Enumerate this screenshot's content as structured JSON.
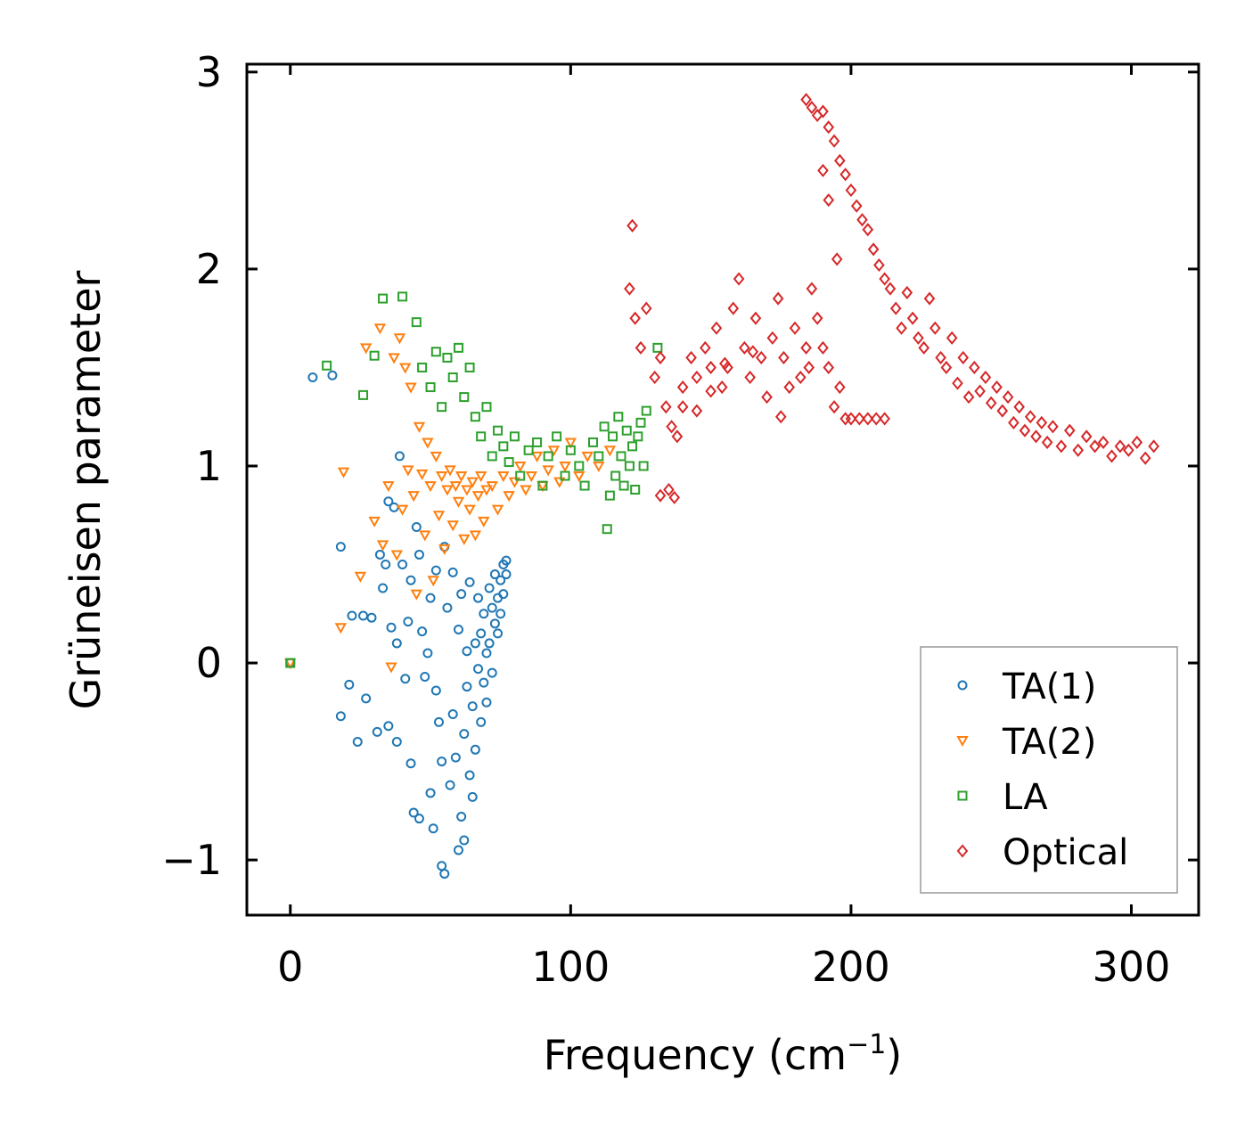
{
  "chart_data": {
    "type": "scatter",
    "xlabel": "Frequency (cm",
    "xlabel_superscript": "−1",
    "xlabel_suffix": ")",
    "ylabel": "Grüneisen parameter",
    "xlim": [
      -15.5,
      324
    ],
    "ylim": [
      -1.28,
      3.04
    ],
    "xticks": [
      0,
      100,
      200,
      300
    ],
    "xtick_labels": [
      "0",
      "100",
      "200",
      "300"
    ],
    "yticks": [
      -1,
      0,
      1,
      2,
      3
    ],
    "ytick_labels": [
      "−1",
      "0",
      "1",
      "2",
      "3"
    ],
    "legend_position": "lower-right",
    "series": [
      {
        "name": "TA(1)",
        "marker": "circle",
        "color": "#1f77b4",
        "points": [
          [
            0,
            0
          ],
          [
            8,
            1.45
          ],
          [
            15,
            1.46
          ],
          [
            18,
            0.59
          ],
          [
            18,
            -0.27
          ],
          [
            21,
            -0.11
          ],
          [
            22,
            0.24
          ],
          [
            24,
            -0.4
          ],
          [
            26,
            0.24
          ],
          [
            27,
            -0.18
          ],
          [
            29,
            0.23
          ],
          [
            31,
            -0.35
          ],
          [
            32,
            0.55
          ],
          [
            33,
            0.38
          ],
          [
            34,
            0.5
          ],
          [
            35,
            -0.32
          ],
          [
            35,
            0.82
          ],
          [
            36,
            0.18
          ],
          [
            37,
            0.79
          ],
          [
            38,
            0.1
          ],
          [
            38,
            -0.4
          ],
          [
            39,
            1.05
          ],
          [
            40,
            0.5
          ],
          [
            41,
            -0.08
          ],
          [
            42,
            0.21
          ],
          [
            43,
            0.42
          ],
          [
            43,
            -0.51
          ],
          [
            44,
            -0.76
          ],
          [
            45,
            0.69
          ],
          [
            46,
            0.55
          ],
          [
            46,
            -0.79
          ],
          [
            47,
            0.16
          ],
          [
            48,
            -0.07
          ],
          [
            49,
            0.05
          ],
          [
            50,
            -0.66
          ],
          [
            50,
            0.33
          ],
          [
            51,
            -0.84
          ],
          [
            52,
            -0.14
          ],
          [
            52,
            0.47
          ],
          [
            53,
            -0.3
          ],
          [
            54,
            -0.5
          ],
          [
            54,
            -1.03
          ],
          [
            55,
            -1.07
          ],
          [
            55,
            0.59
          ],
          [
            56,
            0.28
          ],
          [
            57,
            -0.62
          ],
          [
            58,
            -0.26
          ],
          [
            58,
            0.46
          ],
          [
            59,
            -0.48
          ],
          [
            60,
            -0.95
          ],
          [
            60,
            0.17
          ],
          [
            61,
            -0.78
          ],
          [
            61,
            0.35
          ],
          [
            62,
            -0.36
          ],
          [
            62,
            -0.9
          ],
          [
            63,
            0.06
          ],
          [
            63,
            -0.12
          ],
          [
            64,
            -0.57
          ],
          [
            64,
            0.41
          ],
          [
            65,
            -0.22
          ],
          [
            65,
            -0.68
          ],
          [
            66,
            0.1
          ],
          [
            66,
            -0.44
          ],
          [
            67,
            -0.03
          ],
          [
            67,
            0.33
          ],
          [
            68,
            -0.3
          ],
          [
            68,
            0.15
          ],
          [
            69,
            -0.1
          ],
          [
            69,
            0.25
          ],
          [
            70,
            0.05
          ],
          [
            70,
            -0.2
          ],
          [
            71,
            0.38
          ],
          [
            71,
            0.1
          ],
          [
            72,
            0.28
          ],
          [
            72,
            -0.05
          ],
          [
            73,
            0.45
          ],
          [
            73,
            0.2
          ],
          [
            74,
            0.33
          ],
          [
            74,
            0.15
          ],
          [
            75,
            0.42
          ],
          [
            75,
            0.25
          ],
          [
            76,
            0.5
          ],
          [
            76,
            0.35
          ],
          [
            77,
            0.52
          ],
          [
            77,
            0.45
          ]
        ]
      },
      {
        "name": "TA(2)",
        "marker": "triangle-down",
        "color": "#ff7f0e",
        "points": [
          [
            0,
            0
          ],
          [
            18,
            0.18
          ],
          [
            19,
            0.97
          ],
          [
            25,
            0.44
          ],
          [
            27,
            1.6
          ],
          [
            30,
            0.72
          ],
          [
            32,
            1.7
          ],
          [
            33,
            0.6
          ],
          [
            35,
            0.9
          ],
          [
            36,
            -0.02
          ],
          [
            37,
            1.55
          ],
          [
            38,
            0.55
          ],
          [
            39,
            1.65
          ],
          [
            40,
            0.78
          ],
          [
            41,
            1.5
          ],
          [
            42,
            0.98
          ],
          [
            43,
            1.4
          ],
          [
            44,
            0.85
          ],
          [
            45,
            0.35
          ],
          [
            46,
            1.2
          ],
          [
            47,
            0.96
          ],
          [
            48,
            0.65
          ],
          [
            49,
            1.12
          ],
          [
            50,
            0.9
          ],
          [
            51,
            0.42
          ],
          [
            52,
            1.05
          ],
          [
            53,
            0.75
          ],
          [
            54,
            0.95
          ],
          [
            55,
            0.58
          ],
          [
            56,
            0.88
          ],
          [
            57,
            0.98
          ],
          [
            58,
            0.7
          ],
          [
            59,
            0.9
          ],
          [
            60,
            0.82
          ],
          [
            61,
            0.95
          ],
          [
            62,
            0.63
          ],
          [
            63,
            0.88
          ],
          [
            64,
            0.78
          ],
          [
            65,
            0.92
          ],
          [
            66,
            0.65
          ],
          [
            67,
            0.85
          ],
          [
            68,
            0.95
          ],
          [
            69,
            0.72
          ],
          [
            70,
            0.88
          ],
          [
            72,
            0.9
          ],
          [
            74,
            0.78
          ],
          [
            76,
            0.95
          ],
          [
            78,
            0.85
          ],
          [
            80,
            0.92
          ],
          [
            82,
            1.0
          ],
          [
            84,
            0.88
          ],
          [
            86,
            0.95
          ],
          [
            88,
            1.05
          ],
          [
            90,
            0.9
          ],
          [
            92,
            0.98
          ],
          [
            94,
            1.08
          ],
          [
            96,
            0.92
          ],
          [
            98,
            1.0
          ],
          [
            100,
            1.12
          ],
          [
            103,
            0.95
          ],
          [
            106,
            1.05
          ],
          [
            110,
            1.0
          ],
          [
            114,
            1.08
          ]
        ]
      },
      {
        "name": "LA",
        "marker": "square",
        "color": "#2ca02c",
        "points": [
          [
            0,
            0
          ],
          [
            13,
            1.51
          ],
          [
            26,
            1.36
          ],
          [
            30,
            1.56
          ],
          [
            33,
            1.85
          ],
          [
            40,
            1.86
          ],
          [
            45,
            1.73
          ],
          [
            47,
            1.5
          ],
          [
            50,
            1.4
          ],
          [
            52,
            1.58
          ],
          [
            54,
            1.3
          ],
          [
            56,
            1.55
          ],
          [
            58,
            1.45
          ],
          [
            60,
            1.6
          ],
          [
            62,
            1.35
          ],
          [
            64,
            1.5
          ],
          [
            66,
            1.25
          ],
          [
            68,
            1.15
          ],
          [
            70,
            1.3
          ],
          [
            72,
            1.05
          ],
          [
            74,
            1.18
          ],
          [
            76,
            1.1
          ],
          [
            78,
            1.02
          ],
          [
            80,
            1.15
          ],
          [
            82,
            0.95
          ],
          [
            85,
            1.08
          ],
          [
            88,
            1.12
          ],
          [
            90,
            0.9
          ],
          [
            92,
            1.05
          ],
          [
            95,
            1.15
          ],
          [
            98,
            0.95
          ],
          [
            100,
            1.08
          ],
          [
            103,
            1.0
          ],
          [
            105,
            0.9
          ],
          [
            108,
            1.12
          ],
          [
            110,
            1.05
          ],
          [
            112,
            1.2
          ],
          [
            113,
            0.68
          ],
          [
            114,
            0.85
          ],
          [
            115,
            1.15
          ],
          [
            116,
            0.95
          ],
          [
            117,
            1.25
          ],
          [
            118,
            1.05
          ],
          [
            119,
            0.9
          ],
          [
            120,
            1.18
          ],
          [
            121,
            1.0
          ],
          [
            122,
            1.1
          ],
          [
            123,
            0.88
          ],
          [
            124,
            1.15
          ],
          [
            125,
            1.22
          ],
          [
            126,
            1.0
          ],
          [
            127,
            1.28
          ],
          [
            131,
            1.6
          ]
        ]
      },
      {
        "name": "Optical",
        "marker": "diamond",
        "color": "#d62728",
        "points": [
          [
            122,
            2.22
          ],
          [
            121,
            1.9
          ],
          [
            123,
            1.75
          ],
          [
            125,
            1.6
          ],
          [
            127,
            1.8
          ],
          [
            130,
            1.45
          ],
          [
            132,
            1.55
          ],
          [
            134,
            1.3
          ],
          [
            136,
            1.2
          ],
          [
            138,
            1.15
          ],
          [
            140,
            1.4
          ],
          [
            143,
            1.55
          ],
          [
            145,
            1.45
          ],
          [
            148,
            1.6
          ],
          [
            150,
            1.5
          ],
          [
            152,
            1.7
          ],
          [
            154,
            1.4
          ],
          [
            156,
            1.5
          ],
          [
            158,
            1.8
          ],
          [
            160,
            1.95
          ],
          [
            162,
            1.6
          ],
          [
            164,
            1.45
          ],
          [
            166,
            1.75
          ],
          [
            168,
            1.55
          ],
          [
            170,
            1.35
          ],
          [
            172,
            1.65
          ],
          [
            174,
            1.85
          ],
          [
            176,
            1.55
          ],
          [
            178,
            1.4
          ],
          [
            180,
            1.7
          ],
          [
            182,
            1.45
          ],
          [
            184,
            1.6
          ],
          [
            186,
            1.9
          ],
          [
            188,
            1.75
          ],
          [
            190,
            1.6
          ],
          [
            192,
            1.5
          ],
          [
            194,
            1.3
          ],
          [
            196,
            1.4
          ],
          [
            198,
            1.24
          ],
          [
            200,
            1.24
          ],
          [
            203,
            1.24
          ],
          [
            206,
            1.24
          ],
          [
            209,
            1.24
          ],
          [
            212,
            1.24
          ],
          [
            184,
            2.86
          ],
          [
            186,
            2.82
          ],
          [
            188,
            2.78
          ],
          [
            190,
            2.8
          ],
          [
            192,
            2.72
          ],
          [
            194,
            2.65
          ],
          [
            196,
            2.55
          ],
          [
            198,
            2.48
          ],
          [
            200,
            2.4
          ],
          [
            202,
            2.32
          ],
          [
            204,
            2.25
          ],
          [
            206,
            2.2
          ],
          [
            208,
            2.1
          ],
          [
            210,
            2.02
          ],
          [
            212,
            1.95
          ],
          [
            214,
            1.9
          ],
          [
            216,
            1.8
          ],
          [
            218,
            1.7
          ],
          [
            220,
            1.88
          ],
          [
            222,
            1.75
          ],
          [
            224,
            1.65
          ],
          [
            226,
            1.6
          ],
          [
            228,
            1.85
          ],
          [
            230,
            1.7
          ],
          [
            232,
            1.55
          ],
          [
            234,
            1.5
          ],
          [
            236,
            1.65
          ],
          [
            238,
            1.42
          ],
          [
            240,
            1.55
          ],
          [
            242,
            1.35
          ],
          [
            244,
            1.5
          ],
          [
            246,
            1.38
          ],
          [
            248,
            1.45
          ],
          [
            250,
            1.32
          ],
          [
            252,
            1.4
          ],
          [
            254,
            1.28
          ],
          [
            256,
            1.35
          ],
          [
            258,
            1.22
          ],
          [
            260,
            1.3
          ],
          [
            262,
            1.18
          ],
          [
            264,
            1.25
          ],
          [
            266,
            1.15
          ],
          [
            268,
            1.22
          ],
          [
            270,
            1.12
          ],
          [
            272,
            1.2
          ],
          [
            275,
            1.1
          ],
          [
            278,
            1.18
          ],
          [
            281,
            1.08
          ],
          [
            284,
            1.15
          ],
          [
            287,
            1.1
          ],
          [
            290,
            1.12
          ],
          [
            293,
            1.05
          ],
          [
            296,
            1.1
          ],
          [
            299,
            1.08
          ],
          [
            302,
            1.12
          ],
          [
            305,
            1.04
          ],
          [
            308,
            1.1
          ],
          [
            140,
            1.3
          ],
          [
            145,
            1.28
          ],
          [
            150,
            1.38
          ],
          [
            155,
            1.52
          ],
          [
            165,
            1.58
          ],
          [
            175,
            1.25
          ],
          [
            185,
            1.5
          ],
          [
            195,
            2.05
          ],
          [
            192,
            2.35
          ],
          [
            190,
            2.5
          ],
          [
            132,
            0.85
          ],
          [
            135,
            0.88
          ],
          [
            137,
            0.84
          ]
        ]
      }
    ]
  }
}
